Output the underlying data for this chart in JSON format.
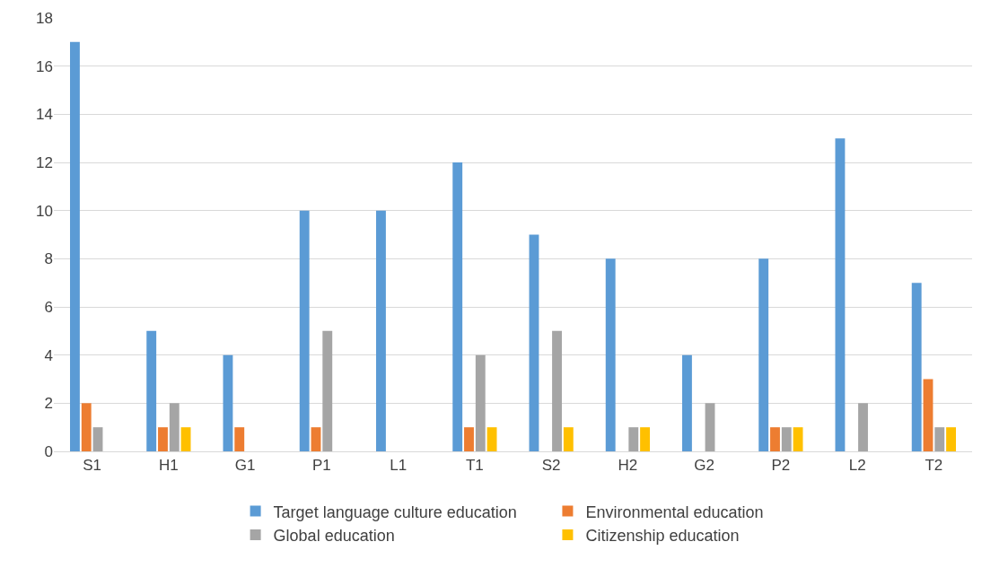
{
  "chart_data": {
    "type": "bar",
    "categories": [
      "S1",
      "H1",
      "G1",
      "P1",
      "L1",
      "T1",
      "S2",
      "H2",
      "G2",
      "P2",
      "L2",
      "T2"
    ],
    "series": [
      {
        "name": "Target language culture education",
        "color": "#5b9bd5",
        "values": [
          17,
          5,
          4,
          10,
          10,
          12,
          9,
          8,
          4,
          8,
          13,
          7
        ]
      },
      {
        "name": "Environmental education",
        "color": "#ed7d31",
        "values": [
          2,
          1,
          1,
          1,
          0,
          1,
          0,
          0,
          0,
          1,
          0,
          3
        ]
      },
      {
        "name": "Global education",
        "color": "#a5a5a5",
        "values": [
          1,
          2,
          0,
          5,
          0,
          4,
          5,
          1,
          2,
          1,
          2,
          1
        ]
      },
      {
        "name": "Citizenship education",
        "color": "#ffc000",
        "values": [
          0,
          1,
          0,
          0,
          0,
          1,
          1,
          1,
          0,
          1,
          0,
          1
        ]
      }
    ],
    "ylim": [
      0,
      18
    ],
    "yticks": [
      0,
      2,
      4,
      6,
      8,
      10,
      12,
      14,
      16,
      18
    ],
    "grid": "y",
    "legend": "bottom"
  }
}
